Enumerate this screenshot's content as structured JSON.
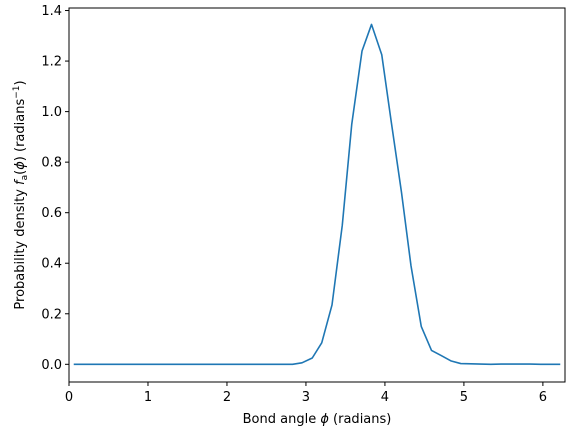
{
  "chart_data": {
    "type": "line",
    "title": "",
    "xlabel": "Bond angle ϕ (radians)",
    "ylabel": "Probability density f_a(ϕ) (radians^-1)",
    "xlim": [
      0,
      6.28
    ],
    "ylim": [
      -0.07,
      1.41
    ],
    "xticks": [
      0,
      1,
      2,
      3,
      4,
      5,
      6
    ],
    "yticks": [
      0.0,
      0.2,
      0.4,
      0.6,
      0.8,
      1.0,
      1.2,
      1.4
    ],
    "grid": false,
    "line_color": "#1f77b4",
    "series": [
      {
        "x": [
          0.06,
          0.19,
          0.31,
          0.44,
          0.57,
          0.69,
          0.82,
          0.94,
          1.07,
          1.19,
          1.32,
          1.44,
          1.57,
          1.7,
          1.82,
          1.95,
          2.07,
          2.2,
          2.32,
          2.45,
          2.58,
          2.7,
          2.83,
          2.95,
          3.08,
          3.2,
          3.33,
          3.46,
          3.58,
          3.71,
          3.83,
          3.96,
          4.08,
          4.21,
          4.33,
          4.46,
          4.59,
          4.71,
          4.84,
          4.96,
          5.09,
          5.21,
          5.34,
          5.47,
          5.59,
          5.72,
          5.84,
          5.97,
          6.09,
          6.22
        ],
        "y": [
          0.0,
          0.0,
          0.0,
          0.0,
          0.0,
          0.0,
          0.0,
          0.0,
          0.0,
          0.0,
          0.0,
          0.0,
          0.0,
          0.0,
          0.0,
          0.0,
          0.0,
          0.0,
          0.0,
          0.0,
          0.0,
          0.0,
          0.0,
          0.006,
          0.025,
          0.085,
          0.235,
          0.55,
          0.95,
          1.24,
          1.345,
          1.225,
          0.96,
          0.68,
          0.39,
          0.15,
          0.055,
          0.035,
          0.013,
          0.003,
          0.002,
          0.001,
          0.0,
          0.001,
          0.001,
          0.001,
          0.001,
          0.0,
          0.0,
          0.0
        ]
      }
    ]
  }
}
